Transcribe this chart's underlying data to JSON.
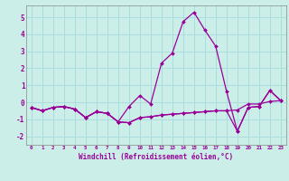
{
  "background_color": "#cceee8",
  "grid_color": "#aadddd",
  "line_color": "#990099",
  "spine_color": "#888888",
  "x_hours": [
    0,
    1,
    2,
    3,
    4,
    5,
    6,
    7,
    8,
    9,
    10,
    11,
    12,
    13,
    14,
    15,
    16,
    17,
    18,
    19,
    20,
    21,
    22,
    23
  ],
  "series1": [
    -0.3,
    -0.5,
    -0.3,
    -0.25,
    -0.4,
    -0.9,
    -0.55,
    -0.65,
    -1.15,
    -0.25,
    0.4,
    -0.1,
    2.3,
    2.9,
    4.75,
    5.3,
    4.25,
    3.3,
    0.65,
    -1.7,
    -0.3,
    -0.25,
    0.7,
    0.1
  ],
  "series2": [
    -0.3,
    -0.5,
    -0.3,
    -0.25,
    -0.4,
    -0.9,
    -0.55,
    -0.65,
    -1.15,
    -1.2,
    -0.9,
    -0.85,
    -0.75,
    -0.7,
    -0.65,
    -0.6,
    -0.55,
    -0.5,
    -0.5,
    -1.7,
    -0.3,
    -0.25,
    0.7,
    0.1
  ],
  "series3": [
    -0.3,
    -0.5,
    -0.3,
    -0.25,
    -0.4,
    -0.9,
    -0.55,
    -0.65,
    -1.15,
    -1.2,
    -0.9,
    -0.85,
    -0.75,
    -0.7,
    -0.65,
    -0.6,
    -0.55,
    -0.5,
    -0.5,
    -0.45,
    -0.1,
    -0.1,
    0.05,
    0.1
  ],
  "ylim": [
    -2.5,
    5.7
  ],
  "yticks": [
    -2,
    -1,
    0,
    1,
    2,
    3,
    4,
    5
  ],
  "xlabel": "Windchill (Refroidissement éolien,°C)",
  "xtick_fontsize": 4.2,
  "ytick_fontsize": 5.5,
  "xlabel_fontsize": 5.5
}
